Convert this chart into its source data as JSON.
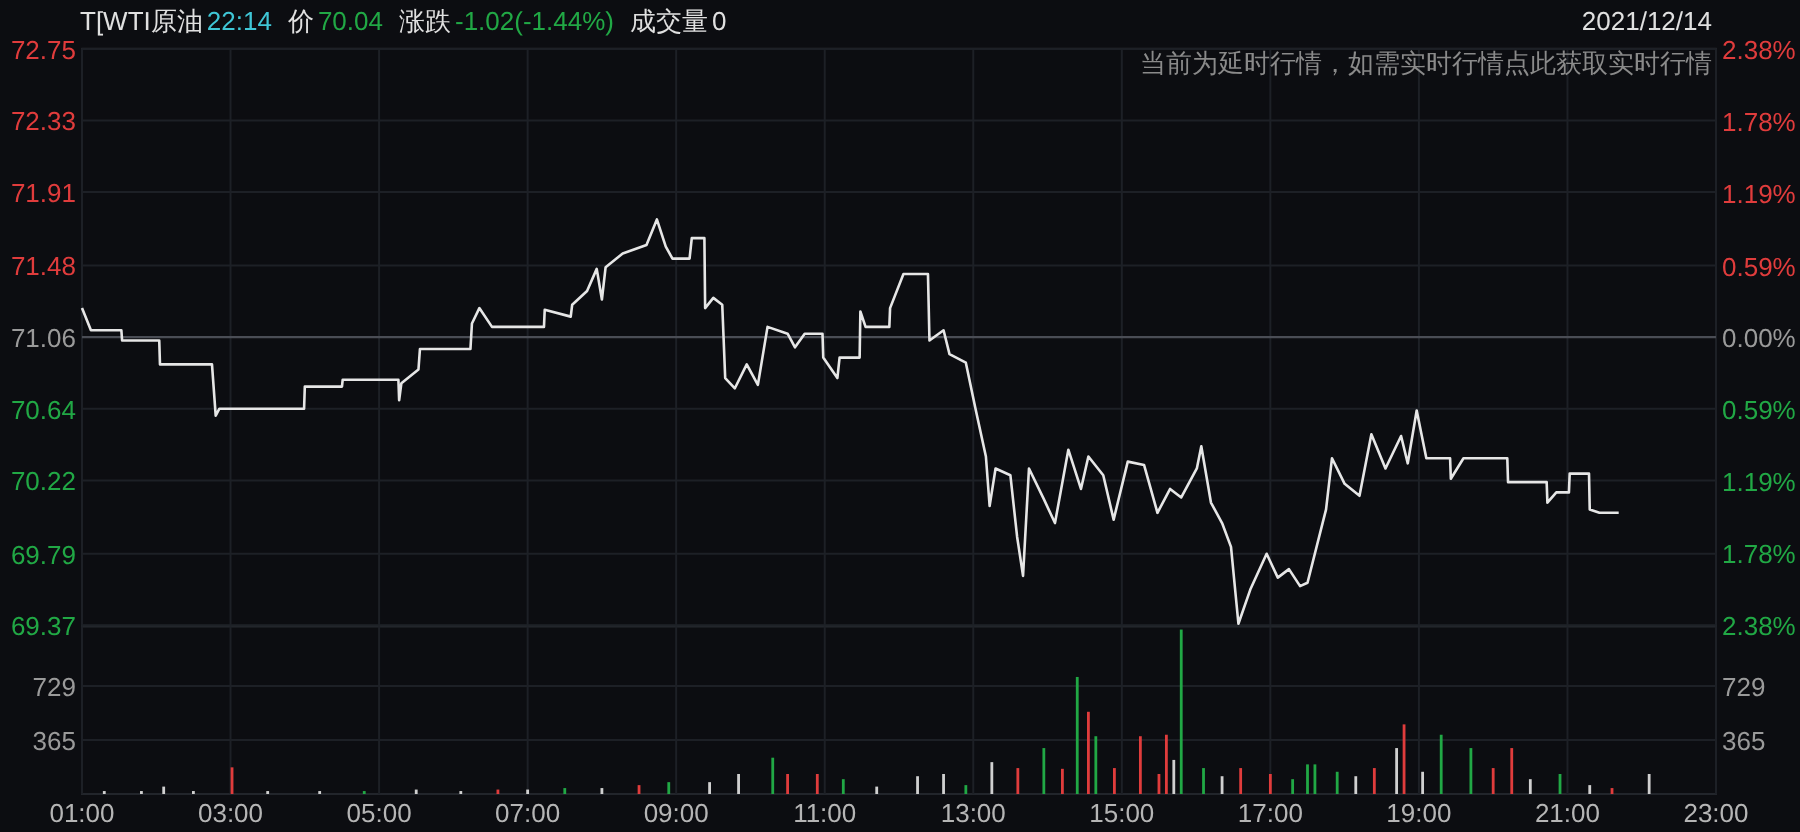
{
  "chart_data": [
    {
      "type": "line",
      "title": "T[WTI原油",
      "annotations": [
        "22:14",
        "价",
        "70.04",
        "涨跌",
        "-1.02(-1.44%)",
        "成交量",
        "0",
        "2021/12/14",
        "当前为延时行情，如需实时行情点此获取实时行情"
      ],
      "series": [
        {
          "color": "#e6e6e6",
          "x": [
            1.0,
            1.12,
            1.53,
            1.54,
            2.04,
            2.05,
            2.75,
            2.8,
            2.85,
            3.99,
            4.0,
            4.5,
            4.51,
            5.26,
            5.27,
            5.3,
            5.53,
            5.55,
            6.23,
            6.25,
            6.35,
            6.52,
            6.53,
            7.22,
            7.23,
            7.58,
            7.6,
            7.8,
            7.93,
            8.0,
            8.05,
            8.28,
            8.6,
            8.74,
            8.86,
            8.95,
            9.18,
            9.21,
            9.38,
            9.39,
            9.5,
            9.62,
            9.66,
            9.79,
            9.95,
            10.1,
            10.23,
            10.5,
            10.6,
            10.73,
            10.97,
            10.98,
            11.17,
            11.2,
            11.47,
            11.48,
            11.55,
            11.87,
            11.88,
            12.06,
            12.39,
            12.41,
            12.6,
            12.68,
            12.9,
            13.03,
            13.17,
            13.22,
            13.3,
            13.5,
            13.59,
            13.67,
            13.75,
            13.95,
            14.1,
            14.28,
            14.45,
            14.55,
            14.75,
            14.89,
            15.08,
            15.3,
            15.48,
            15.65,
            15.8,
            16.01,
            16.07,
            16.2,
            16.35,
            16.47,
            16.57,
            16.73,
            16.95,
            17.1,
            17.25,
            17.4,
            17.5,
            17.75,
            17.83,
            18.0,
            18.2,
            18.36,
            18.55,
            18.76,
            18.85,
            18.97,
            19.1,
            19.42,
            19.43,
            19.6,
            20.19,
            20.2,
            20.72,
            20.73,
            20.85,
            21.02,
            21.03,
            21.29,
            21.3,
            21.43,
            21.69
          ],
          "values": [
            71.23,
            71.1,
            71.1,
            71.04,
            71.04,
            70.9,
            70.9,
            70.6,
            70.64,
            70.64,
            70.77,
            70.77,
            70.81,
            70.81,
            70.69,
            70.79,
            70.87,
            70.99,
            70.99,
            71.14,
            71.23,
            71.12,
            71.12,
            71.12,
            71.22,
            71.18,
            71.25,
            71.33,
            71.46,
            71.28,
            71.47,
            71.55,
            71.6,
            71.75,
            71.59,
            71.52,
            71.52,
            71.64,
            71.64,
            71.23,
            71.29,
            71.25,
            70.82,
            70.76,
            70.9,
            70.78,
            71.12,
            71.08,
            71.0,
            71.08,
            71.08,
            70.94,
            70.82,
            70.94,
            70.94,
            71.21,
            71.12,
            71.12,
            71.23,
            71.43,
            71.43,
            71.04,
            71.1,
            70.96,
            70.91,
            70.64,
            70.36,
            70.07,
            70.29,
            70.25,
            69.89,
            69.66,
            70.29,
            70.11,
            69.97,
            70.4,
            70.17,
            70.36,
            70.25,
            69.99,
            70.33,
            70.31,
            70.03,
            70.17,
            70.12,
            70.29,
            70.42,
            70.09,
            69.97,
            69.83,
            69.38,
            69.58,
            69.79,
            69.65,
            69.7,
            69.6,
            69.62,
            70.05,
            70.35,
            70.2,
            70.13,
            70.49,
            70.29,
            70.48,
            70.32,
            70.63,
            70.35,
            70.35,
            70.23,
            70.35,
            70.35,
            70.21,
            70.21,
            70.09,
            70.15,
            70.15,
            70.26,
            70.26,
            70.05,
            70.03,
            70.03
          ]
        }
      ],
      "xlim": [
        1,
        23
      ],
      "xticks": [
        1,
        3,
        5,
        7,
        9,
        11,
        13,
        15,
        17,
        19,
        21,
        23
      ],
      "ylim": [
        69.37,
        72.75
      ],
      "yticks": [
        69.37,
        69.79,
        70.22,
        70.64,
        71.06,
        71.48,
        71.91,
        72.33,
        72.75
      ],
      "y2lim": [
        -2.38,
        2.38
      ],
      "y2ticks": [
        {
          "value": -2.38,
          "label": "2.38%"
        },
        {
          "value": -1.78,
          "label": "1.78%"
        },
        {
          "value": -1.19,
          "label": "1.19%"
        },
        {
          "value": -0.59,
          "label": "0.59%"
        },
        {
          "value": 0,
          "label": "0.00%"
        },
        {
          "value": 0.59,
          "label": "0.59%"
        },
        {
          "value": 1.19,
          "label": "1.19%"
        },
        {
          "value": 1.78,
          "label": "1.78%"
        },
        {
          "value": 2.38,
          "label": "2.38%"
        }
      ],
      "ref_lines": [
        {
          "axis": "y",
          "value": 71.06,
          "color": "#4a4d55"
        }
      ],
      "grid": true,
      "tick_labels": "y"
    },
    {
      "type": "bar",
      "x": [
        1.3,
        1.8,
        2.1,
        2.5,
        3.02,
        3.5,
        4.2,
        4.8,
        5.5,
        6.1,
        6.6,
        7.0,
        7.5,
        8.0,
        8.5,
        8.9,
        9.45,
        9.84,
        10.3,
        10.5,
        10.9,
        11.25,
        11.7,
        12.25,
        12.6,
        12.9,
        13.25,
        13.6,
        13.95,
        14.2,
        14.4,
        14.55,
        14.65,
        14.9,
        15.25,
        15.5,
        15.6,
        15.7,
        15.8,
        16.1,
        16.35,
        16.6,
        17.0,
        17.3,
        17.5,
        17.6,
        17.9,
        18.15,
        18.4,
        18.7,
        18.8,
        19.05,
        19.3,
        19.7,
        20.0,
        20.25,
        20.5,
        20.9,
        21.3,
        21.6,
        22.1
      ],
      "values": [
        20,
        20,
        50,
        20,
        180,
        20,
        20,
        20,
        30,
        20,
        30,
        30,
        40,
        40,
        60,
        80,
        80,
        135,
        245,
        135,
        135,
        100,
        50,
        120,
        135,
        60,
        215,
        175,
        310,
        170,
        790,
        555,
        390,
        175,
        390,
        135,
        400,
        230,
        1110,
        175,
        120,
        175,
        135,
        100,
        200,
        200,
        150,
        120,
        175,
        310,
        470,
        150,
        400,
        310,
        175,
        310,
        100,
        135,
        60,
        40,
        135
      ],
      "colors": [
        "#d0d0d0",
        "#d0d0d0",
        "#d0d0d0",
        "#d0d0d0",
        "#e03c3c",
        "#d0d0d0",
        "#d0d0d0",
        "#21a845",
        "#d0d0d0",
        "#d0d0d0",
        "#e03c3c",
        "#d0d0d0",
        "#21a845",
        "#d0d0d0",
        "#e03c3c",
        "#21a845",
        "#d0d0d0",
        "#d0d0d0",
        "#21a845",
        "#e03c3c",
        "#e03c3c",
        "#21a845",
        "#d0d0d0",
        "#d0d0d0",
        "#d0d0d0",
        "#21a845",
        "#d0d0d0",
        "#e03c3c",
        "#21a845",
        "#e03c3c",
        "#21a845",
        "#e03c3c",
        "#21a845",
        "#e03c3c",
        "#e03c3c",
        "#e03c3c",
        "#e03c3c",
        "#d0d0d0",
        "#21a845",
        "#21a845",
        "#d0d0d0",
        "#e03c3c",
        "#e03c3c",
        "#21a845",
        "#21a845",
        "#21a845",
        "#21a845",
        "#d0d0d0",
        "#e03c3c",
        "#d0d0d0",
        "#e03c3c",
        "#d0d0d0",
        "#21a845",
        "#21a845",
        "#e03c3c",
        "#e03c3c",
        "#d0d0d0",
        "#21a845",
        "#d0d0d0",
        "#e03c3c",
        "#d0d0d0"
      ],
      "xlim": [
        1,
        23
      ],
      "xticks": [
        {
          "value": 1,
          "label": "01:00"
        },
        {
          "value": 3,
          "label": "03:00"
        },
        {
          "value": 5,
          "label": "05:00"
        },
        {
          "value": 7,
          "label": "07:00"
        },
        {
          "value": 9,
          "label": "09:00"
        },
        {
          "value": 11,
          "label": "11:00"
        },
        {
          "value": 13,
          "label": "13:00"
        },
        {
          "value": 15,
          "label": "15:00"
        },
        {
          "value": 17,
          "label": "17:00"
        },
        {
          "value": 19,
          "label": "19:00"
        },
        {
          "value": 21,
          "label": "21:00"
        },
        {
          "value": 23,
          "label": "23:00"
        }
      ],
      "ylim": [
        0,
        1130
      ],
      "yticks": [
        365,
        729
      ],
      "y2lim": [
        0,
        1130
      ],
      "y2ticks": [
        365,
        729
      ],
      "grid": true
    }
  ]
}
